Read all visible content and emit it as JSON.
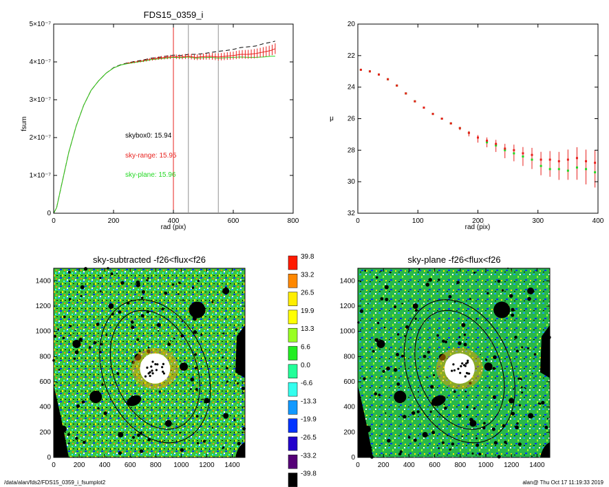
{
  "footer": {
    "path": "/data/alan/fds2/FDS15_0359_i_fsumplot2",
    "stamp": "alan@  Thu Oct 17 11:19:33 2019"
  },
  "chart_data": [
    {
      "type": "line",
      "title": "FDS15_0359_i",
      "xlabel": "rad (pix)",
      "ylabel": "fsum",
      "xlim": [
        0,
        800
      ],
      "ylim": [
        0,
        5e-07
      ],
      "x_ticks": [
        "0",
        "200",
        "400",
        "600",
        "800"
      ],
      "y_ticks": [
        "0",
        "1×10⁻⁷",
        "2×10⁻⁷",
        "3×10⁻⁷",
        "4×10⁻⁷",
        "5×10⁻⁷"
      ],
      "annotations": [
        {
          "text": "skybox0: 15.94",
          "color": "#000000"
        },
        {
          "text": "sky-range: 15.95",
          "color": "#e8201c"
        },
        {
          "text": "sky-plane: 15.96",
          "color": "#22d822"
        }
      ],
      "vlines": [
        {
          "x": 400,
          "color": "#e8201c"
        },
        {
          "x": 450,
          "color": "#909090"
        },
        {
          "x": 550,
          "color": "#909090"
        }
      ],
      "series": [
        {
          "color": "#000000",
          "dash": true,
          "x": [
            0,
            10,
            25,
            50,
            75,
            100,
            125,
            150,
            175,
            200,
            225,
            250,
            275,
            300,
            325,
            350,
            375,
            400,
            425,
            450,
            475,
            500,
            525,
            550,
            575,
            600,
            625,
            650,
            675,
            700,
            725,
            740
          ],
          "y": [
            0,
            0.15,
            0.7,
            1.6,
            2.3,
            2.85,
            3.25,
            3.5,
            3.7,
            3.85,
            3.93,
            3.98,
            4.02,
            4.05,
            4.1,
            4.12,
            4.15,
            4.18,
            4.17,
            4.2,
            4.2,
            4.22,
            4.25,
            4.28,
            4.3,
            4.33,
            4.38,
            4.4,
            4.42,
            4.48,
            4.52,
            4.55
          ]
        },
        {
          "color": "#e8201c",
          "dash": false,
          "x": [
            0,
            10,
            25,
            50,
            75,
            100,
            125,
            150,
            175,
            200,
            225,
            250,
            275,
            300,
            325,
            350,
            375,
            400,
            425,
            450,
            475,
            500,
            525,
            550,
            575,
            600,
            625,
            650,
            675,
            700,
            725,
            740
          ],
          "y": [
            0,
            0.15,
            0.7,
            1.6,
            2.3,
            2.85,
            3.25,
            3.5,
            3.7,
            3.84,
            3.92,
            3.97,
            4.0,
            4.03,
            4.07,
            4.1,
            4.12,
            4.14,
            4.13,
            4.15,
            4.12,
            4.14,
            4.15,
            4.13,
            4.15,
            4.17,
            4.2,
            4.2,
            4.22,
            4.26,
            4.3,
            4.35
          ]
        },
        {
          "color": "#22d822",
          "dash": false,
          "x": [
            0,
            10,
            25,
            50,
            75,
            100,
            125,
            150,
            175,
            200,
            225,
            250,
            275,
            300,
            325,
            350,
            375,
            400,
            425,
            450,
            475,
            500,
            525,
            550,
            575,
            600,
            625,
            650,
            675,
            700,
            725,
            740
          ],
          "y": [
            0,
            0.15,
            0.7,
            1.6,
            2.3,
            2.85,
            3.25,
            3.5,
            3.7,
            3.84,
            3.92,
            3.96,
            3.99,
            4.02,
            4.06,
            4.08,
            4.1,
            4.12,
            4.11,
            4.13,
            4.1,
            4.11,
            4.12,
            4.1,
            4.11,
            4.12,
            4.13,
            4.12,
            4.12,
            4.13,
            4.15,
            4.15
          ]
        }
      ],
      "error_bars": {
        "series": 1,
        "x_min": 250,
        "x_max": 740,
        "step": 10,
        "half_width_start": 0.02,
        "half_width_end": 0.14
      }
    },
    {
      "type": "scatter",
      "xlabel": "rad (pix)",
      "ylabel": "μ",
      "xlim": [
        0,
        400
      ],
      "ylim": [
        32,
        20
      ],
      "x_ticks": [
        "0",
        "100",
        "200",
        "300",
        "400"
      ],
      "y_ticks": [
        "20",
        "22",
        "24",
        "26",
        "28",
        "30",
        "32"
      ],
      "series": [
        {
          "color": "#e8201c",
          "x": [
            5,
            20,
            35,
            50,
            65,
            80,
            95,
            110,
            125,
            140,
            155,
            170,
            185,
            200,
            215,
            230,
            245,
            260,
            275,
            290,
            305,
            320,
            335,
            350,
            365,
            380,
            395
          ],
          "y": [
            22.9,
            23.0,
            23.2,
            23.5,
            23.9,
            24.4,
            24.9,
            25.3,
            25.7,
            26.0,
            26.3,
            26.6,
            26.9,
            27.2,
            27.4,
            27.6,
            27.9,
            28.0,
            28.2,
            28.3,
            28.6,
            28.6,
            28.7,
            28.6,
            28.5,
            28.7,
            28.8
          ]
        },
        {
          "color": "#22d822",
          "x": [
            5,
            20,
            35,
            50,
            65,
            80,
            95,
            110,
            125,
            140,
            155,
            170,
            185,
            200,
            215,
            230,
            245,
            260,
            275,
            290,
            305,
            320,
            335,
            350,
            365,
            380,
            395
          ],
          "y": [
            22.9,
            23.0,
            23.2,
            23.5,
            23.9,
            24.4,
            24.9,
            25.3,
            25.7,
            26.0,
            26.3,
            26.6,
            26.9,
            27.2,
            27.5,
            27.7,
            28.0,
            28.2,
            28.4,
            28.6,
            29.0,
            29.2,
            29.2,
            29.3,
            29.1,
            29.2,
            29.4
          ]
        }
      ]
    },
    {
      "type": "heatmap",
      "title": "sky-subtracted -f26<flux<f26",
      "xlim": [
        0,
        1500
      ],
      "ylim": [
        0,
        1500
      ],
      "x_ticks": [
        "0",
        "200",
        "400",
        "600",
        "800",
        "1000",
        "1200",
        "1400"
      ],
      "y_ticks": [
        "0",
        "200",
        "400",
        "600",
        "800",
        "1000",
        "1200",
        "1400"
      ]
    },
    {
      "type": "heatmap",
      "title": "sky-plane -f26<flux<f26",
      "xlim": [
        0,
        1500
      ],
      "ylim": [
        0,
        1500
      ],
      "x_ticks": [
        "0",
        "200",
        "400",
        "600",
        "800",
        "1000",
        "1200",
        "1400"
      ],
      "y_ticks": [
        "0",
        "200",
        "400",
        "600",
        "800",
        "1000",
        "1200",
        "1400"
      ]
    },
    {
      "type": "colorbar",
      "labels": [
        "39.8",
        "33.2",
        "26.5",
        "19.9",
        "13.3",
        "6.6",
        "0.0",
        "-6.6",
        "-13.3",
        "-19.9",
        "-26.5",
        "-33.2",
        "-39.8"
      ],
      "colors": [
        "#ff1a00",
        "#ff8800",
        "#ffee00",
        "#ffff00",
        "#99ff22",
        "#22ee22",
        "#22ff99",
        "#33ffee",
        "#1199ff",
        "#0033ff",
        "#2200cc",
        "#550077",
        "#000000"
      ]
    }
  ]
}
